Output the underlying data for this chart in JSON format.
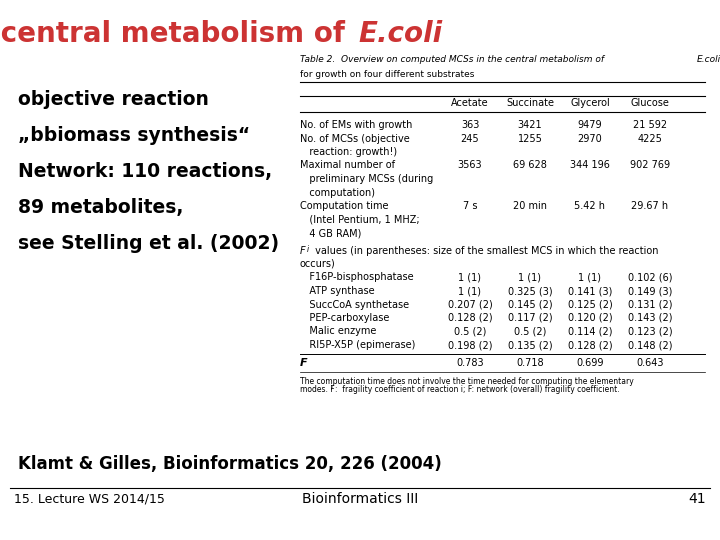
{
  "title_color": "#cc3333",
  "title_fontsize": 20,
  "bg_color": "#ffffff",
  "left_text_lines": [
    "objective reaction",
    "„bbiomass synthesis“",
    "Network: 110 reactions,",
    "89 metabolites,",
    "see Stelling et al. (2002)"
  ],
  "citation_text": "Klamt & Gilles, Bioinformatics 20, 226 (2004)",
  "footer_center_text": "Bioinformatics III",
  "footer_left_text": "15. Lecture WS 2014/15",
  "footer_right_text": "41"
}
